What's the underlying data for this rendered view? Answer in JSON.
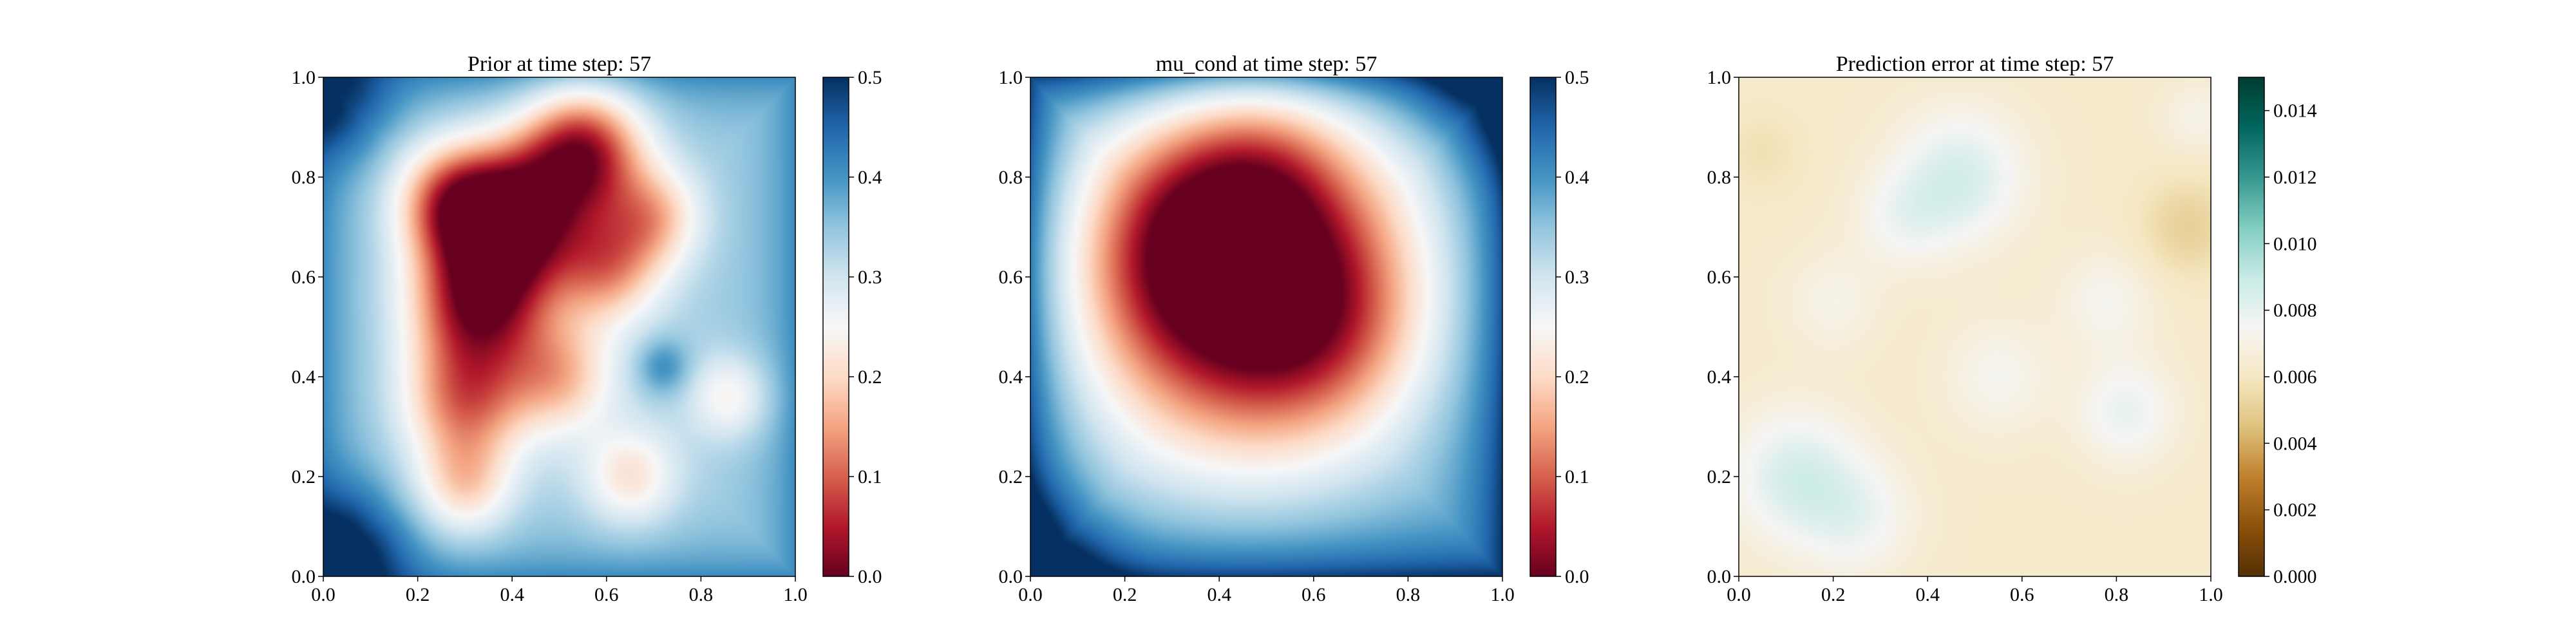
{
  "chart_data": [
    {
      "type": "heatmap",
      "title": "Prior at time step: 57",
      "colormap": "RdBu",
      "xlim": [
        0.0,
        1.0
      ],
      "ylim": [
        0.0,
        1.0
      ],
      "x_ticks": [
        "0.0",
        "0.2",
        "0.4",
        "0.6",
        "0.8",
        "1.0"
      ],
      "y_ticks": [
        "0.0",
        "0.2",
        "0.4",
        "0.6",
        "0.8",
        "1.0"
      ],
      "colorbar": {
        "min": 0.0,
        "max": 0.5,
        "ticks": [
          "0.0",
          "0.1",
          "0.2",
          "0.3",
          "0.4",
          "0.5"
        ]
      },
      "field_blobs": [
        {
          "x": 0.4,
          "y": 0.72,
          "amp": 0.34,
          "r": 0.1
        },
        {
          "x": 0.55,
          "y": 0.85,
          "amp": 0.3,
          "r": 0.09
        },
        {
          "x": 0.33,
          "y": 0.55,
          "amp": 0.3,
          "r": 0.1
        },
        {
          "x": 0.27,
          "y": 0.75,
          "amp": 0.2,
          "r": 0.08
        },
        {
          "x": 0.6,
          "y": 0.62,
          "amp": 0.18,
          "r": 0.08
        },
        {
          "x": 0.7,
          "y": 0.72,
          "amp": 0.14,
          "r": 0.07
        },
        {
          "x": 0.3,
          "y": 0.35,
          "amp": 0.2,
          "r": 0.09
        },
        {
          "x": 0.5,
          "y": 0.4,
          "amp": 0.15,
          "r": 0.08
        },
        {
          "x": 0.3,
          "y": 0.18,
          "amp": 0.13,
          "r": 0.07
        },
        {
          "x": 0.65,
          "y": 0.2,
          "amp": 0.12,
          "r": 0.07
        },
        {
          "x": 0.86,
          "y": 0.36,
          "amp": 0.1,
          "r": 0.06
        },
        {
          "x": 0.72,
          "y": 0.42,
          "amp": -0.08,
          "r": 0.04
        },
        {
          "x": 0.05,
          "y": 0.05,
          "amp": -0.16,
          "r": 0.09
        },
        {
          "x": 0.03,
          "y": 0.95,
          "amp": -0.12,
          "r": 0.08
        }
      ],
      "baseline": 0.33,
      "edge_rise": 0.08
    },
    {
      "type": "heatmap",
      "title": "mu_cond at time step: 57",
      "colormap": "RdBu",
      "xlim": [
        0.0,
        1.0
      ],
      "ylim": [
        0.0,
        1.0
      ],
      "x_ticks": [
        "0.0",
        "0.2",
        "0.4",
        "0.6",
        "0.8",
        "1.0"
      ],
      "y_ticks": [
        "0.0",
        "0.2",
        "0.4",
        "0.6",
        "0.8",
        "1.0"
      ],
      "colorbar": {
        "min": 0.0,
        "max": 0.5,
        "ticks": [
          "0.0",
          "0.1",
          "0.2",
          "0.3",
          "0.4",
          "0.5"
        ]
      },
      "field_blobs": [
        {
          "x": 0.45,
          "y": 0.6,
          "amp": 0.42,
          "r": 0.24
        },
        {
          "x": 0.35,
          "y": 0.68,
          "amp": 0.1,
          "r": 0.14
        },
        {
          "x": 0.62,
          "y": 0.5,
          "amp": 0.08,
          "r": 0.14
        },
        {
          "x": 0.5,
          "y": 0.82,
          "amp": 0.06,
          "r": 0.12
        },
        {
          "x": 0.02,
          "y": 0.02,
          "amp": -0.12,
          "r": 0.1
        },
        {
          "x": 0.98,
          "y": 0.98,
          "amp": -0.1,
          "r": 0.1
        }
      ],
      "baseline": 0.36,
      "edge_rise": 0.14
    },
    {
      "type": "heatmap",
      "title": "Prediction error at time step: 57",
      "colormap": "BrBG",
      "xlim": [
        0.0,
        1.0
      ],
      "ylim": [
        0.0,
        1.0
      ],
      "x_ticks": [
        "0.0",
        "0.2",
        "0.4",
        "0.6",
        "0.8",
        "1.0"
      ],
      "y_ticks": [
        "0.0",
        "0.2",
        "0.4",
        "0.6",
        "0.8",
        "1.0"
      ],
      "colorbar": {
        "min": 0.0,
        "max": 0.015,
        "ticks": [
          "0.000",
          "0.002",
          "0.004",
          "0.006",
          "0.008",
          "0.010",
          "0.012",
          "0.014"
        ]
      },
      "field_blobs": [
        {
          "x": 0.47,
          "y": 0.8,
          "amp": -0.0022,
          "r": 0.09
        },
        {
          "x": 0.35,
          "y": 0.72,
          "amp": -0.0012,
          "r": 0.07
        },
        {
          "x": 0.12,
          "y": 0.2,
          "amp": -0.0022,
          "r": 0.09
        },
        {
          "x": 0.25,
          "y": 0.12,
          "amp": -0.0014,
          "r": 0.08
        },
        {
          "x": 0.82,
          "y": 0.33,
          "amp": -0.0016,
          "r": 0.07
        },
        {
          "x": 0.78,
          "y": 0.55,
          "amp": -0.001,
          "r": 0.07
        },
        {
          "x": 0.55,
          "y": 0.4,
          "amp": -0.001,
          "r": 0.08
        },
        {
          "x": 0.2,
          "y": 0.55,
          "amp": -0.0008,
          "r": 0.07
        },
        {
          "x": 0.95,
          "y": 0.7,
          "amp": 0.0012,
          "r": 0.07
        },
        {
          "x": 0.97,
          "y": 0.92,
          "amp": -0.0008,
          "r": 0.05
        },
        {
          "x": 0.05,
          "y": 0.85,
          "amp": 0.0006,
          "r": 0.06
        }
      ],
      "baseline": 0.0063,
      "edge_rise": 0.0
    }
  ]
}
